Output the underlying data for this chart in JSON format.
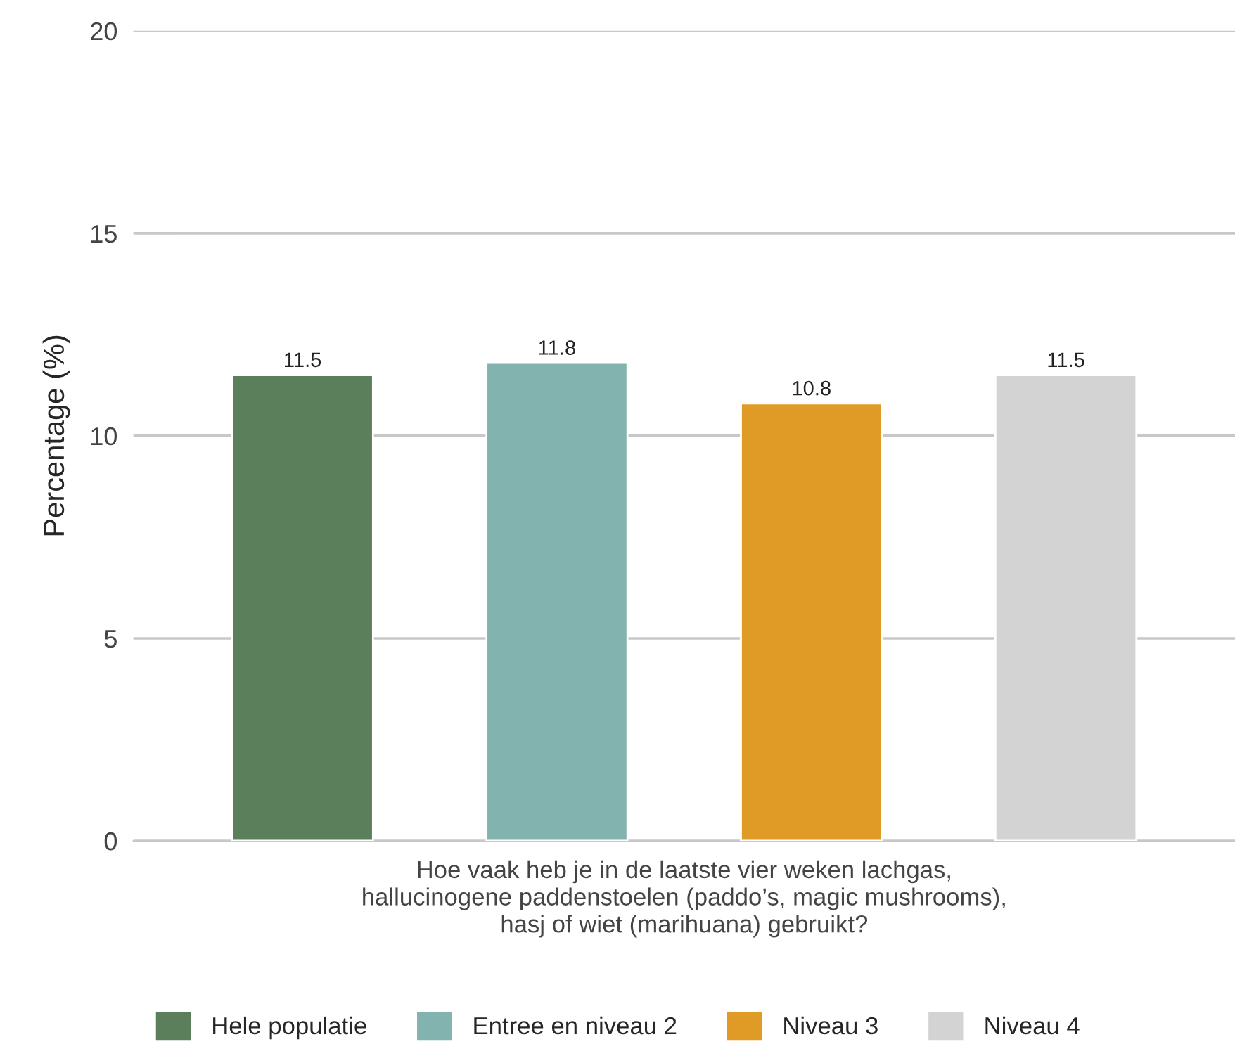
{
  "chart_data": {
    "type": "bar",
    "categories": [
      null
    ],
    "xlabel": "Hoe vaak heb je in de laatste vier weken lachgas,\nhallucinogene paddenstoelen (paddo’s, magic mushrooms),\nhasj of wiet (marihuana) gebruikt?",
    "ylabel": "Percentage (%)",
    "series": [
      {
        "name": "Hele populatie",
        "color": "#5a7f5a",
        "values": [
          11.5
        ]
      },
      {
        "name": "Entree en niveau 2",
        "color": "#82b3ae",
        "values": [
          11.8
        ]
      },
      {
        "name": "Niveau 3",
        "color": "#e09b26",
        "values": [
          10.8
        ]
      },
      {
        "name": "Niveau 4",
        "color": "#d3d3d3",
        "values": [
          11.5
        ]
      }
    ],
    "ylim": [
      0,
      20
    ],
    "yticks": [
      0,
      5,
      10,
      15,
      20
    ],
    "grid": "y",
    "legend": "bottom",
    "data_labels": true
  }
}
